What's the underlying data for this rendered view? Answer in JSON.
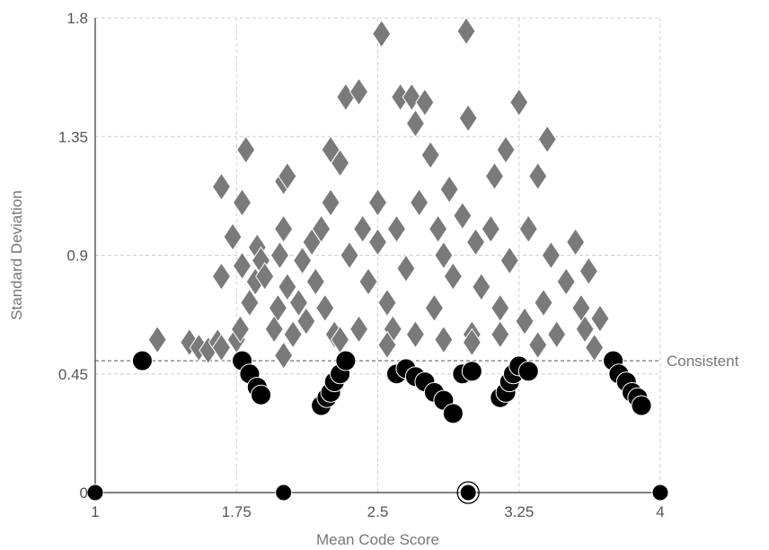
{
  "chart_data": {
    "type": "scatter",
    "xlabel": "Mean Code Score",
    "ylabel": "Standard Deviation",
    "xlim": [
      1,
      4
    ],
    "ylim": [
      0,
      1.8
    ],
    "x_ticks": [
      "1",
      "1.75",
      "2.5",
      "3.25",
      "4"
    ],
    "x_tick_values": [
      1,
      1.75,
      2.5,
      3.25,
      4
    ],
    "y_ticks": [
      "0",
      "0.45",
      "0.9",
      "1.35",
      "1.8"
    ],
    "y_tick_values": [
      0,
      0.45,
      0.9,
      1.35,
      1.8
    ],
    "grid": true,
    "threshold": {
      "y": 0.5,
      "label": "Consistent"
    },
    "marker_colors": {
      "inconsistent": "#7a7a7a",
      "consistent": "#000000"
    },
    "series": [
      {
        "marker": "diamond",
        "points": [
          [
            1.33,
            0.58
          ],
          [
            1.5,
            0.57
          ],
          [
            1.55,
            0.55
          ],
          [
            1.6,
            0.54
          ],
          [
            1.65,
            0.57
          ],
          [
            1.67,
            0.55
          ],
          [
            1.67,
            0.82
          ],
          [
            1.67,
            1.16
          ],
          [
            1.73,
            0.97
          ],
          [
            1.75,
            0.58
          ],
          [
            1.77,
            0.62
          ],
          [
            1.78,
            0.86
          ],
          [
            1.78,
            1.1
          ],
          [
            1.8,
            1.3
          ],
          [
            1.82,
            0.72
          ],
          [
            1.85,
            0.8
          ],
          [
            1.86,
            0.93
          ],
          [
            1.88,
            0.88
          ],
          [
            1.9,
            0.82
          ],
          [
            1.95,
            0.62
          ],
          [
            1.97,
            0.7
          ],
          [
            1.98,
            0.9
          ],
          [
            2.0,
            0.52
          ],
          [
            2.0,
            1.0
          ],
          [
            2.0,
            1.18
          ],
          [
            2.02,
            1.2
          ],
          [
            2.02,
            0.78
          ],
          [
            2.05,
            0.6
          ],
          [
            2.08,
            0.72
          ],
          [
            2.1,
            0.88
          ],
          [
            2.12,
            0.65
          ],
          [
            2.15,
            0.95
          ],
          [
            2.17,
            0.8
          ],
          [
            2.2,
            1.0
          ],
          [
            2.22,
            0.7
          ],
          [
            2.25,
            1.1
          ],
          [
            2.25,
            1.3
          ],
          [
            2.27,
            0.6
          ],
          [
            2.3,
            1.25
          ],
          [
            2.33,
            1.5
          ],
          [
            2.35,
            0.9
          ],
          [
            2.4,
            1.52
          ],
          [
            2.42,
            1.0
          ],
          [
            2.45,
            0.8
          ],
          [
            2.5,
            1.1
          ],
          [
            2.5,
            0.95
          ],
          [
            2.52,
            1.74
          ],
          [
            2.55,
            0.72
          ],
          [
            2.58,
            0.62
          ],
          [
            2.6,
            1.0
          ],
          [
            2.62,
            1.5
          ],
          [
            2.65,
            0.85
          ],
          [
            2.68,
            1.5
          ],
          [
            2.7,
            1.4
          ],
          [
            2.72,
            1.1
          ],
          [
            2.75,
            1.48
          ],
          [
            2.78,
            1.28
          ],
          [
            2.8,
            0.7
          ],
          [
            2.82,
            1.0
          ],
          [
            2.85,
            0.9
          ],
          [
            2.88,
            1.15
          ],
          [
            2.9,
            0.82
          ],
          [
            2.95,
            1.05
          ],
          [
            2.97,
            1.75
          ],
          [
            2.98,
            1.42
          ],
          [
            3.0,
            0.6
          ],
          [
            3.02,
            0.95
          ],
          [
            3.05,
            0.78
          ],
          [
            3.1,
            1.0
          ],
          [
            3.12,
            1.2
          ],
          [
            3.15,
            0.7
          ],
          [
            3.18,
            1.3
          ],
          [
            3.2,
            0.88
          ],
          [
            3.25,
            1.48
          ],
          [
            3.28,
            0.65
          ],
          [
            3.3,
            1.0
          ],
          [
            3.35,
            1.2
          ],
          [
            3.38,
            0.72
          ],
          [
            3.4,
            1.34
          ],
          [
            3.42,
            0.9
          ],
          [
            3.45,
            0.6
          ],
          [
            3.5,
            0.8
          ],
          [
            3.55,
            0.95
          ],
          [
            3.58,
            0.7
          ],
          [
            3.6,
            0.62
          ],
          [
            3.62,
            0.84
          ],
          [
            3.65,
            0.55
          ],
          [
            3.68,
            0.66
          ],
          [
            2.3,
            0.58
          ],
          [
            2.4,
            0.62
          ],
          [
            2.55,
            0.56
          ],
          [
            2.7,
            0.6
          ],
          [
            2.85,
            0.58
          ],
          [
            3.0,
            0.57
          ],
          [
            3.15,
            0.6
          ],
          [
            3.35,
            0.56
          ]
        ]
      },
      {
        "marker": "circle",
        "points": [
          [
            1.25,
            0.5
          ],
          [
            1.78,
            0.5
          ],
          [
            1.82,
            0.45
          ],
          [
            1.86,
            0.4
          ],
          [
            1.88,
            0.37
          ],
          [
            2.0,
            0.0
          ],
          [
            2.2,
            0.33
          ],
          [
            2.23,
            0.36
          ],
          [
            2.25,
            0.38
          ],
          [
            2.27,
            0.42
          ],
          [
            2.3,
            0.45
          ],
          [
            2.33,
            0.5
          ],
          [
            2.6,
            0.45
          ],
          [
            2.65,
            0.47
          ],
          [
            2.7,
            0.44
          ],
          [
            2.75,
            0.42
          ],
          [
            2.8,
            0.38
          ],
          [
            2.85,
            0.35
          ],
          [
            2.9,
            0.3
          ],
          [
            2.95,
            0.45
          ],
          [
            3.0,
            0.46
          ],
          [
            2.98,
            0.0
          ],
          [
            3.15,
            0.36
          ],
          [
            3.18,
            0.38
          ],
          [
            3.2,
            0.42
          ],
          [
            3.22,
            0.45
          ],
          [
            3.25,
            0.48
          ],
          [
            3.3,
            0.46
          ],
          [
            3.75,
            0.5
          ],
          [
            3.78,
            0.45
          ],
          [
            3.82,
            0.42
          ],
          [
            3.85,
            0.38
          ],
          [
            3.88,
            0.36
          ],
          [
            3.9,
            0.33
          ],
          [
            1.0,
            0.0
          ],
          [
            4.0,
            0.0
          ]
        ]
      }
    ]
  }
}
